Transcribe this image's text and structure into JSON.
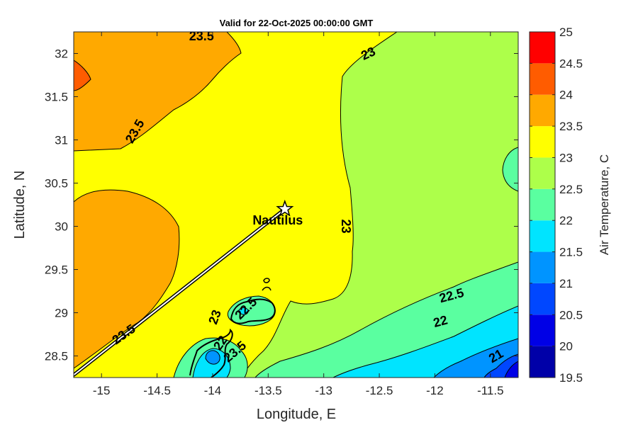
{
  "title": "Valid for 22-Oct-2025 00:00:00 GMT",
  "axes": {
    "xlabel": "Longitude, E",
    "ylabel": "Latitude, N",
    "xlim": [
      -15.25,
      -11.25
    ],
    "ylim": [
      28.25,
      32.25
    ],
    "xticks": [
      -15,
      -14.5,
      -14,
      -13.5,
      -13,
      -12.5,
      -12,
      -11.5
    ],
    "xtick_labels": [
      "-15",
      "-14.5",
      "-14",
      "-13.5",
      "-13",
      "-12.5",
      "-12",
      "-11.5"
    ],
    "yticks": [
      28.5,
      29,
      29.5,
      30,
      30.5,
      31,
      31.5,
      32
    ],
    "ytick_labels": [
      "28.5",
      "29",
      "29.5",
      "30",
      "30.5",
      "31",
      "31.5",
      "32"
    ]
  },
  "colorbar": {
    "label": "Air Temperature, C",
    "levels": [
      19.5,
      20,
      20.5,
      21,
      21.5,
      22,
      22.5,
      23,
      23.5,
      24,
      24.5,
      25
    ],
    "level_labels": [
      "19.5",
      "20",
      "20.5",
      "21",
      "21.5",
      "22",
      "22.5",
      "23",
      "23.5",
      "24",
      "24.5",
      "25"
    ],
    "colors": [
      "#0000a8",
      "#0000e6",
      "#0047ff",
      "#0094ff",
      "#00e4ff",
      "#5affa0",
      "#adff4a",
      "#ffff00",
      "#ffa900",
      "#ff5c00",
      "#ff0000",
      "#ab0000"
    ]
  },
  "contour_labels": [
    {
      "text": "23.5",
      "lon": -14.1,
      "lat": 32.2
    },
    {
      "text": "23.5",
      "lon": -14.7,
      "lat": 31.1
    },
    {
      "text": "23",
      "lon": -12.6,
      "lat": 32.0
    },
    {
      "text": "23",
      "lon": -12.8,
      "lat": 30.0
    },
    {
      "text": "23.5",
      "lon": -14.8,
      "lat": 28.75
    },
    {
      "text": "23",
      "lon": -13.98,
      "lat": 28.95
    },
    {
      "text": "22.5",
      "lon": -13.7,
      "lat": 29.05
    },
    {
      "text": "22",
      "lon": -13.93,
      "lat": 28.65
    },
    {
      "text": "23.5",
      "lon": -13.8,
      "lat": 28.55
    },
    {
      "text": "22.5",
      "lon": -11.85,
      "lat": 29.2
    },
    {
      "text": "22",
      "lon": -11.95,
      "lat": 28.9
    },
    {
      "text": "21",
      "lon": -11.45,
      "lat": 28.5
    }
  ],
  "site": {
    "name": "Nautilus",
    "lon": -13.35,
    "lat": 30.2,
    "marker": "star-icon"
  },
  "track": {
    "from": {
      "lon": -15.25,
      "lat": 28.28
    },
    "to": {
      "lon": -13.35,
      "lat": 30.2
    }
  }
}
